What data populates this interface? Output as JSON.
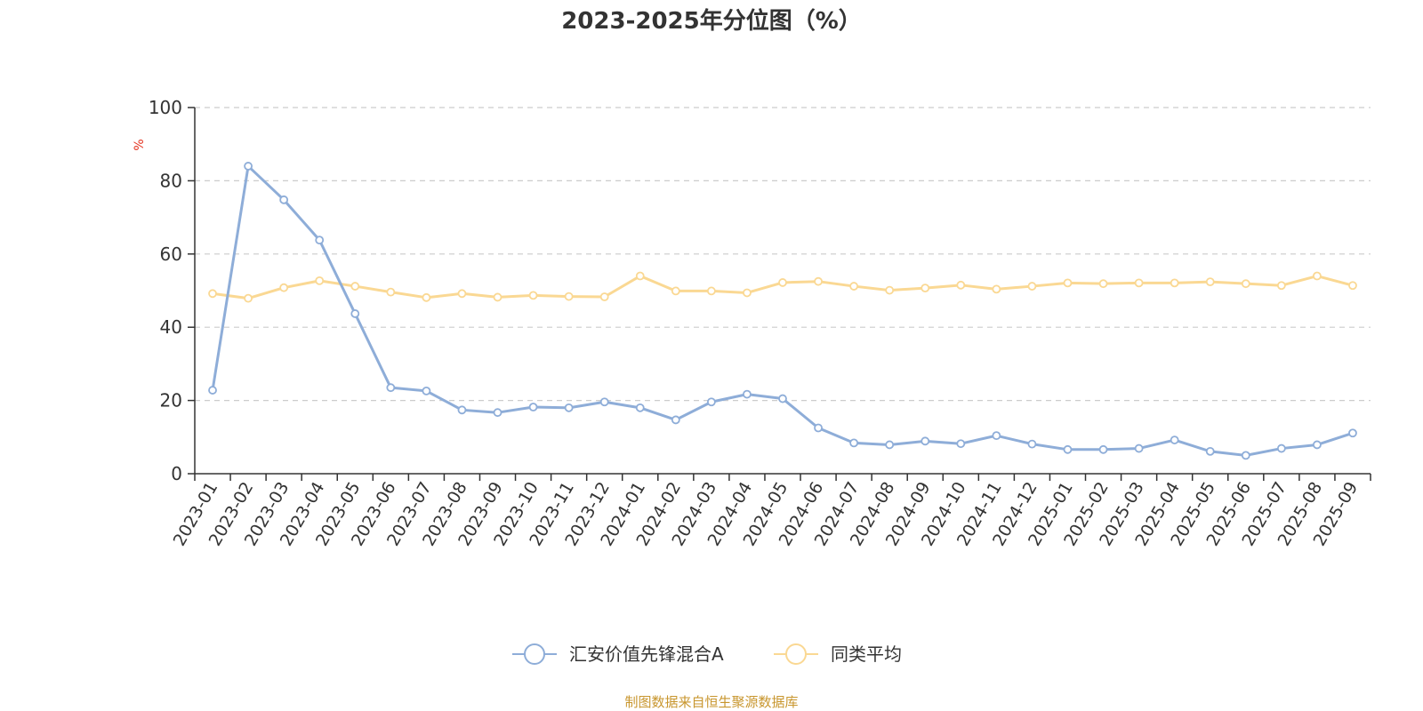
{
  "chart_data": {
    "type": "line",
    "title": "2023-2025年分位图（%）",
    "ylabel": "%",
    "ylim": [
      0,
      100
    ],
    "yticks": [
      0,
      20,
      40,
      60,
      80,
      100
    ],
    "grid": true,
    "legend_position": "bottom-center",
    "categories": [
      "2023-01",
      "2023-02",
      "2023-03",
      "2023-04",
      "2023-05",
      "2023-06",
      "2023-07",
      "2023-08",
      "2023-09",
      "2023-10",
      "2023-11",
      "2023-12",
      "2024-01",
      "2024-02",
      "2024-03",
      "2024-04",
      "2024-05",
      "2024-06",
      "2024-07",
      "2024-08",
      "2024-09",
      "2024-10",
      "2024-11",
      "2024-12",
      "2025-01",
      "2025-02",
      "2025-03",
      "2025-04",
      "2025-05",
      "2025-06",
      "2025-07",
      "2025-08",
      "2025-09"
    ],
    "series": [
      {
        "name": "汇安价值先锋混合A",
        "color": "#8eadd8",
        "values": [
          22.8,
          84.0,
          74.8,
          63.8,
          43.7,
          23.5,
          22.6,
          17.4,
          16.7,
          18.2,
          18.0,
          19.6,
          18.0,
          14.7,
          19.6,
          21.7,
          20.5,
          12.5,
          8.4,
          7.9,
          8.9,
          8.2,
          10.4,
          8.1,
          6.6,
          6.6,
          6.9,
          9.2,
          6.1,
          5.0,
          6.9,
          7.9,
          11.1
        ]
      },
      {
        "name": "同类平均",
        "color": "#fad893",
        "values": [
          49.2,
          47.9,
          50.8,
          52.7,
          51.2,
          49.6,
          48.1,
          49.2,
          48.2,
          48.7,
          48.4,
          48.3,
          54.0,
          49.9,
          49.9,
          49.4,
          52.2,
          52.5,
          51.2,
          50.1,
          50.7,
          51.5,
          50.4,
          51.2,
          52.1,
          51.9,
          52.1,
          52.1,
          52.4,
          51.9,
          51.4,
          54.0,
          51.4
        ]
      }
    ]
  },
  "source_text": "制图数据来自恒生聚源数据库",
  "colors": {
    "axis": "#333333",
    "grid": "#cccccc",
    "unit": "#e3321f",
    "source": "#c8962e"
  }
}
